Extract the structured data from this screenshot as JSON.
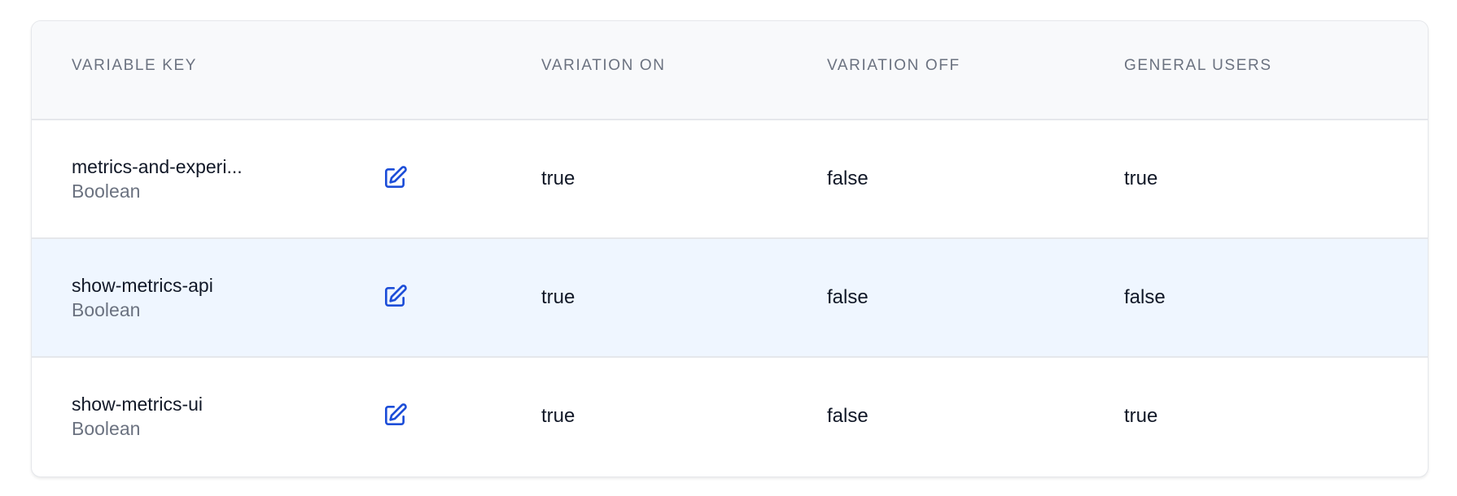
{
  "headers": {
    "key": "VARIABLE KEY",
    "on": "VARIATION ON",
    "off": "VARIATION OFF",
    "general": "GENERAL USERS"
  },
  "colors": {
    "accent": "#1d4ed8",
    "highlight_row": "#eff6ff",
    "header_bg": "#f8f9fb"
  },
  "rows": [
    {
      "key": "metrics-and-experi...",
      "type": "Boolean",
      "on": "true",
      "off": "false",
      "general": "true",
      "icon": "edit-icon"
    },
    {
      "key": "show-metrics-api",
      "type": "Boolean",
      "on": "true",
      "off": "false",
      "general": "false",
      "icon": "edit-icon",
      "highlighted": true
    },
    {
      "key": "show-metrics-ui",
      "type": "Boolean",
      "on": "true",
      "off": "false",
      "general": "true",
      "icon": "edit-icon"
    }
  ]
}
